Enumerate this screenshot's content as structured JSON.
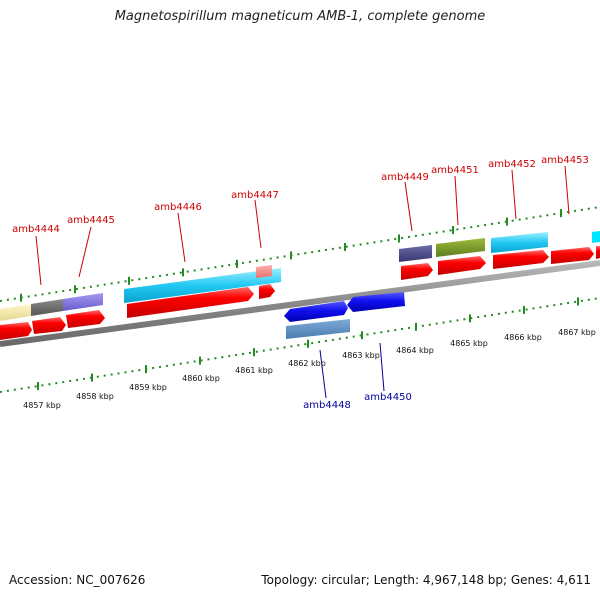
{
  "header": {
    "title": "Magnetospirillum magneticum AMB-1, complete genome"
  },
  "footer": {
    "accession": "Accession: NC_007626",
    "summary": "Topology: circular; Length: 4,967,148 bp; Genes: 4,611"
  },
  "colors": {
    "forward_label": "#cc0000",
    "reverse_label": "#000099",
    "tick": "#228b22",
    "backbone": "#808080",
    "cds": "#ee0000"
  },
  "scale": {
    "unit": "kbp",
    "labels": [
      "4857 kbp",
      "4858 kbp",
      "4859 kbp",
      "4860 kbp",
      "4861 kbp",
      "4862 kbp",
      "4863 kbp",
      "4864 kbp",
      "4865 kbp",
      "4866 kbp",
      "4867 kbp"
    ]
  },
  "genes": {
    "forward": [
      "amb4444",
      "amb4445",
      "amb4446",
      "amb4447",
      "amb4449",
      "amb4451",
      "amb4452",
      "amb4453"
    ],
    "reverse": [
      "amb4448",
      "amb4450"
    ]
  }
}
